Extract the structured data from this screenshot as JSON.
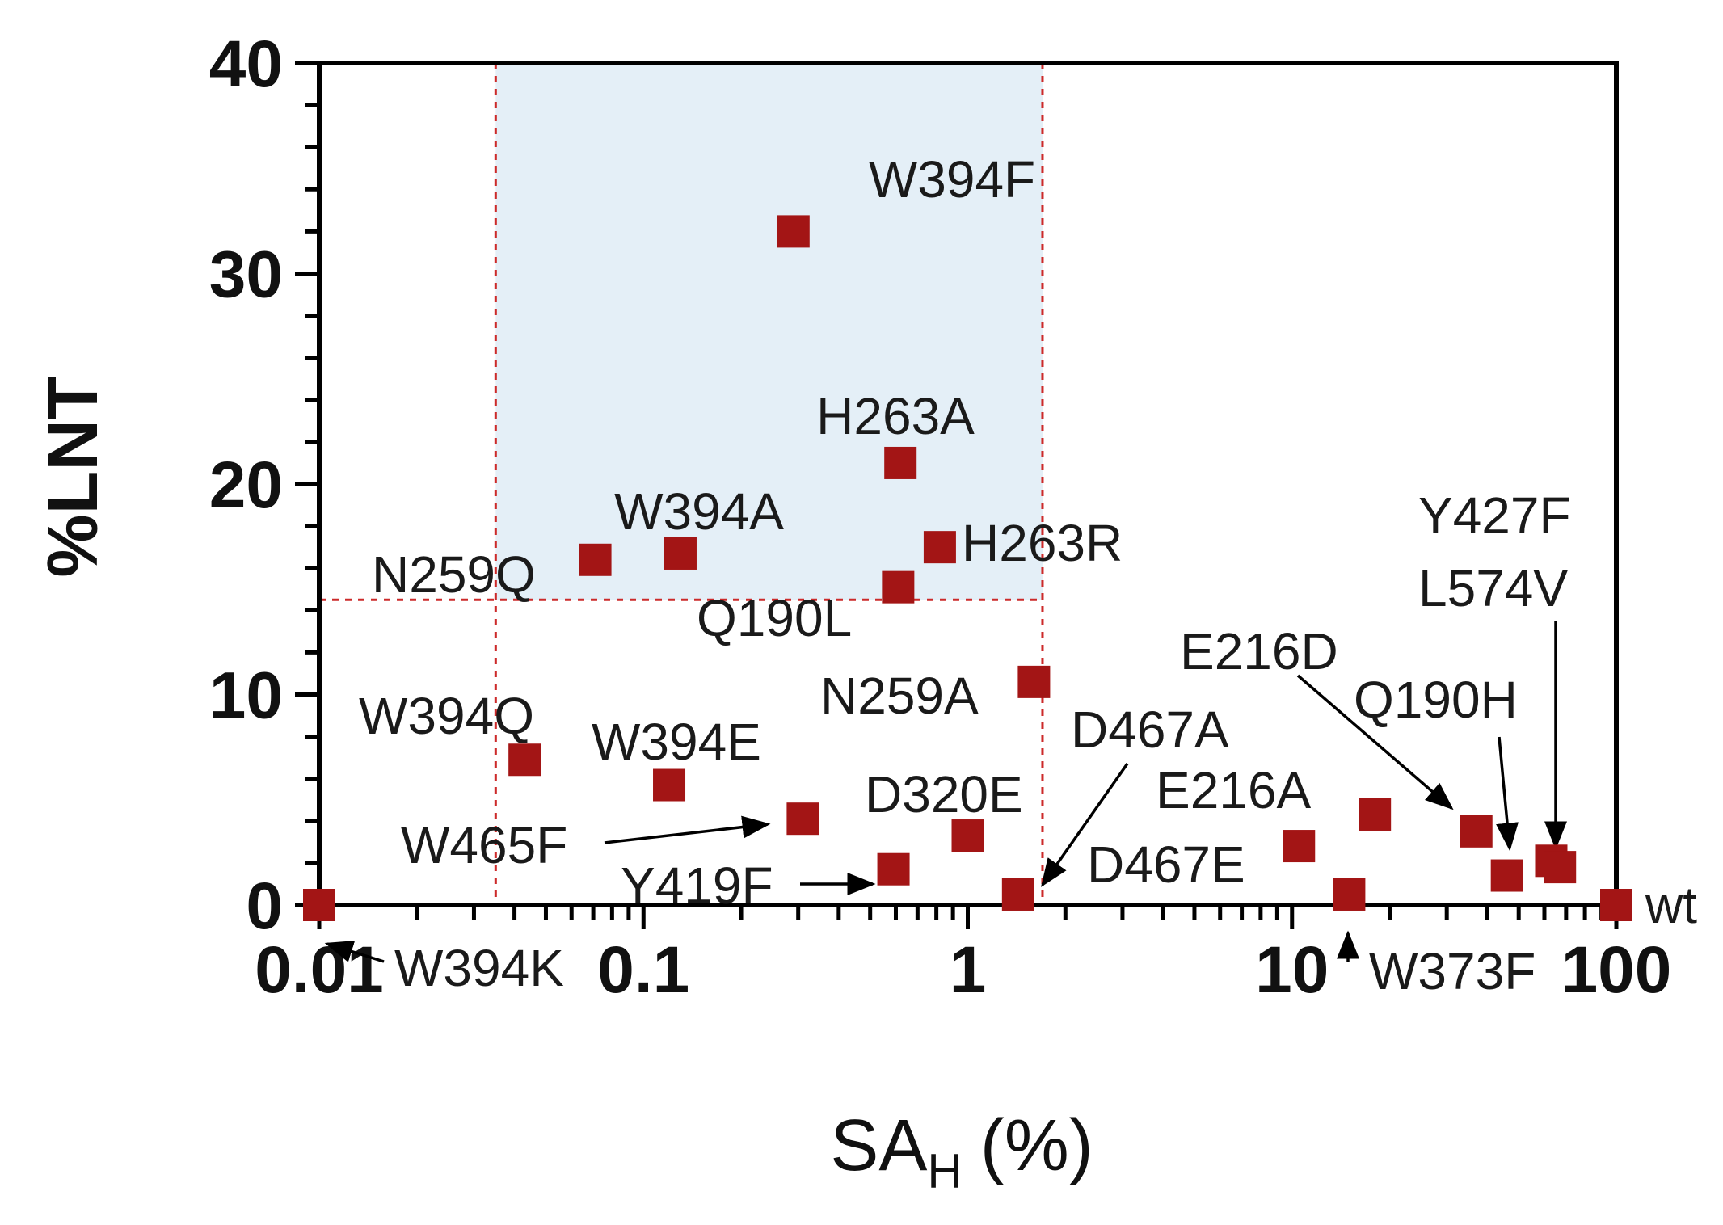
{
  "chart_data": {
    "type": "scatter",
    "title": "",
    "xlabel": "SA",
    "xlabel_subscript": "H",
    "xlabel_unit": "(%)",
    "ylabel": "%LNT",
    "x_scale": "log",
    "xlim": [
      0.01,
      100
    ],
    "ylim": [
      0,
      40
    ],
    "x_ticks": [
      {
        "value": 0.01,
        "label": "0.01"
      },
      {
        "value": 0.1,
        "label": "0.1"
      },
      {
        "value": 1,
        "label": "1"
      },
      {
        "value": 10,
        "label": "10"
      },
      {
        "value": 100,
        "label": "100"
      }
    ],
    "y_ticks": [
      {
        "value": 0,
        "label": "0"
      },
      {
        "value": 10,
        "label": "10"
      },
      {
        "value": 20,
        "label": "20"
      },
      {
        "value": 30,
        "label": "30"
      },
      {
        "value": 40,
        "label": "40"
      }
    ],
    "highlight_region": {
      "x_range": [
        0.035,
        1.7
      ],
      "y_range": [
        14.5,
        40
      ],
      "color": "#e4eff7"
    },
    "threshold_lines": {
      "x": [
        0.035,
        1.7
      ],
      "y": 14.5,
      "color": "#cc2a2a"
    },
    "marker_color": "#a31515",
    "points": [
      {
        "name": "W394F",
        "x": 0.29,
        "y": 32.0
      },
      {
        "name": "H263A",
        "x": 0.62,
        "y": 21.0
      },
      {
        "name": "W394A",
        "x": 0.13,
        "y": 16.7
      },
      {
        "name": "N259Q",
        "x": 0.071,
        "y": 16.4
      },
      {
        "name": "H263R",
        "x": 0.82,
        "y": 17.0
      },
      {
        "name": "Q190L",
        "x": 0.61,
        "y": 15.1
      },
      {
        "name": "N259A",
        "x": 1.6,
        "y": 10.6
      },
      {
        "name": "W394Q",
        "x": 0.043,
        "y": 6.9
      },
      {
        "name": "W394E",
        "x": 0.12,
        "y": 5.7
      },
      {
        "name": "W465F",
        "x": 0.31,
        "y": 4.1
      },
      {
        "name": "Y419F",
        "x": 0.59,
        "y": 1.7
      },
      {
        "name": "D320E",
        "x": 1.0,
        "y": 3.3
      },
      {
        "name": "D467A",
        "x": 1.43,
        "y": 0.5
      },
      {
        "name": "W394K",
        "x": 0.01,
        "y": 0.0
      },
      {
        "name": "E216A",
        "x": 10.5,
        "y": 2.8
      },
      {
        "name": "D467E",
        "x": 18.0,
        "y": 4.3
      },
      {
        "name": "W373F",
        "x": 15.0,
        "y": 0.5
      },
      {
        "name": "E216D",
        "x": 37.0,
        "y": 3.5
      },
      {
        "name": "Q190H",
        "x": 46.0,
        "y": 1.4
      },
      {
        "name": "Y427F",
        "x": 63.0,
        "y": 2.1
      },
      {
        "name": "L574V",
        "x": 67.0,
        "y": 1.8
      },
      {
        "name": "wt",
        "x": 100,
        "y": 0.0
      }
    ],
    "annotations": [
      {
        "key": "W394F",
        "text": "W394F"
      },
      {
        "key": "H263A",
        "text": "H263A"
      },
      {
        "key": "W394A",
        "text": "W394A"
      },
      {
        "key": "N259Q",
        "text": "N259Q"
      },
      {
        "key": "H263R",
        "text": "H263R"
      },
      {
        "key": "Q190L",
        "text": "Q190L"
      },
      {
        "key": "N259A",
        "text": "N259A"
      },
      {
        "key": "W394Q",
        "text": "W394Q"
      },
      {
        "key": "W394E",
        "text": "W394E"
      },
      {
        "key": "W465F",
        "text": "W465F"
      },
      {
        "key": "Y419F",
        "text": "Y419F"
      },
      {
        "key": "D320E",
        "text": "D320E"
      },
      {
        "key": "D467A",
        "text": "D467A"
      },
      {
        "key": "W394K",
        "text": "W394K"
      },
      {
        "key": "E216A",
        "text": "E216A"
      },
      {
        "key": "D467E",
        "text": "D467E"
      },
      {
        "key": "W373F",
        "text": "W373F"
      },
      {
        "key": "E216D",
        "text": "E216D"
      },
      {
        "key": "Q190H",
        "text": "Q190H"
      },
      {
        "key": "Y427F",
        "text": "Y427F"
      },
      {
        "key": "L574V",
        "text": "L574V"
      },
      {
        "key": "wt",
        "text": "wt"
      }
    ]
  }
}
